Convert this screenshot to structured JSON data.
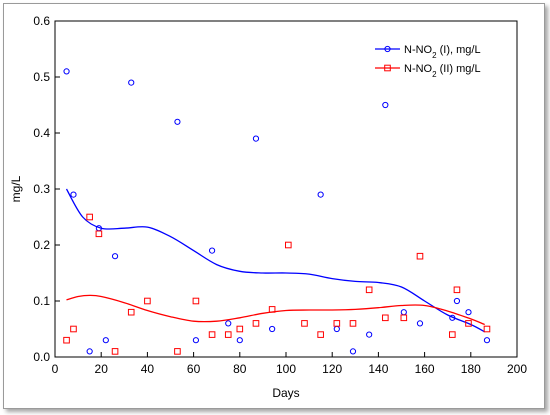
{
  "chart_data": {
    "type": "scatter",
    "xlabel": "Days",
    "ylabel": "mg/L",
    "xlim": [
      0,
      200
    ],
    "ylim": [
      0,
      0.6
    ],
    "xticks": [
      "0",
      "20",
      "40",
      "60",
      "80",
      "100",
      "120",
      "140",
      "160",
      "180",
      "200"
    ],
    "yticks": [
      "0.0",
      "0.1",
      "0.2",
      "0.3",
      "0.4",
      "0.5",
      "0.6"
    ],
    "grid": false,
    "legend_position": "top-right",
    "series": [
      {
        "name": "N-NO₂ (I), mg/L",
        "legend_main": "N-NO",
        "legend_sub": "2",
        "legend_rest": " (I), mg/L",
        "color": "#0000ff",
        "marker": "circle",
        "points": [
          [
            5,
            0.51
          ],
          [
            8,
            0.29
          ],
          [
            15,
            0.01
          ],
          [
            19,
            0.23
          ],
          [
            22,
            0.03
          ],
          [
            26,
            0.18
          ],
          [
            33,
            0.49
          ],
          [
            53,
            0.42
          ],
          [
            61,
            0.03
          ],
          [
            68,
            0.19
          ],
          [
            75,
            0.06
          ],
          [
            80,
            0.03
          ],
          [
            87,
            0.39
          ],
          [
            94,
            0.05
          ],
          [
            115,
            0.29
          ],
          [
            122,
            0.05
          ],
          [
            129,
            0.01
          ],
          [
            136,
            0.04
          ],
          [
            143,
            0.45
          ],
          [
            151,
            0.08
          ],
          [
            158,
            0.06
          ],
          [
            172,
            0.07
          ],
          [
            174,
            0.1
          ],
          [
            179,
            0.08
          ],
          [
            187,
            0.03
          ]
        ],
        "trend": [
          [
            5,
            0.3
          ],
          [
            12,
            0.25
          ],
          [
            20,
            0.23
          ],
          [
            30,
            0.23
          ],
          [
            40,
            0.232
          ],
          [
            50,
            0.215
          ],
          [
            60,
            0.19
          ],
          [
            70,
            0.165
          ],
          [
            80,
            0.153
          ],
          [
            90,
            0.15
          ],
          [
            100,
            0.15
          ],
          [
            110,
            0.148
          ],
          [
            120,
            0.14
          ],
          [
            130,
            0.135
          ],
          [
            140,
            0.133
          ],
          [
            150,
            0.125
          ],
          [
            160,
            0.1
          ],
          [
            170,
            0.075
          ],
          [
            180,
            0.058
          ],
          [
            186,
            0.045
          ]
        ]
      },
      {
        "name": "N-NO₂ (II) mg/L",
        "legend_main": "N-NO",
        "legend_sub": "2",
        "legend_rest": "  (II) mg/L",
        "color": "#ff0000",
        "marker": "square",
        "points": [
          [
            5,
            0.03
          ],
          [
            8,
            0.05
          ],
          [
            15,
            0.25
          ],
          [
            19,
            0.22
          ],
          [
            26,
            0.01
          ],
          [
            33,
            0.08
          ],
          [
            40,
            0.1
          ],
          [
            53,
            0.01
          ],
          [
            61,
            0.1
          ],
          [
            68,
            0.04
          ],
          [
            75,
            0.04
          ],
          [
            80,
            0.05
          ],
          [
            87,
            0.06
          ],
          [
            94,
            0.085
          ],
          [
            101,
            0.2
          ],
          [
            108,
            0.06
          ],
          [
            115,
            0.04
          ],
          [
            122,
            0.06
          ],
          [
            129,
            0.06
          ],
          [
            136,
            0.12
          ],
          [
            143,
            0.07
          ],
          [
            151,
            0.07
          ],
          [
            158,
            0.18
          ],
          [
            172,
            0.04
          ],
          [
            174,
            0.12
          ],
          [
            179,
            0.06
          ],
          [
            187,
            0.05
          ]
        ],
        "trend": [
          [
            5,
            0.102
          ],
          [
            10,
            0.108
          ],
          [
            15,
            0.11
          ],
          [
            20,
            0.108
          ],
          [
            30,
            0.097
          ],
          [
            40,
            0.083
          ],
          [
            50,
            0.072
          ],
          [
            60,
            0.064
          ],
          [
            70,
            0.064
          ],
          [
            80,
            0.07
          ],
          [
            90,
            0.078
          ],
          [
            100,
            0.083
          ],
          [
            110,
            0.084
          ],
          [
            120,
            0.084
          ],
          [
            130,
            0.085
          ],
          [
            140,
            0.088
          ],
          [
            150,
            0.092
          ],
          [
            160,
            0.092
          ],
          [
            170,
            0.082
          ],
          [
            180,
            0.068
          ],
          [
            186,
            0.058
          ]
        ]
      }
    ]
  }
}
